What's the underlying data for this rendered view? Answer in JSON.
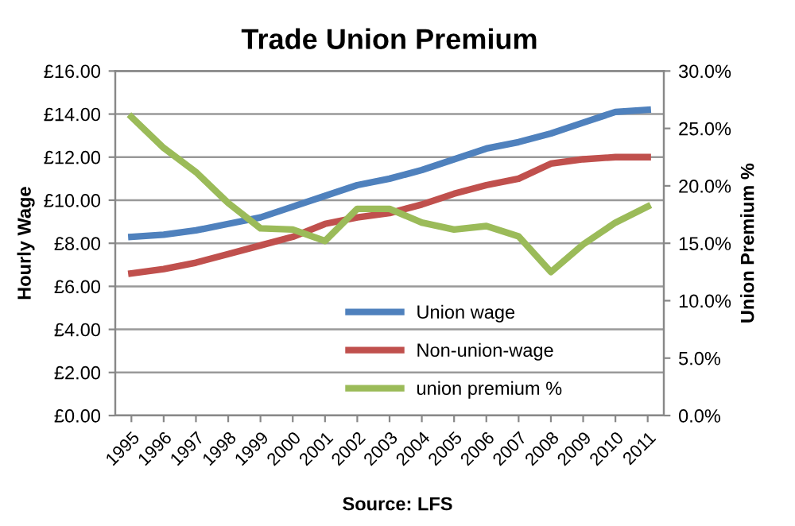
{
  "chart_data": {
    "type": "line",
    "title": "Trade Union Premium",
    "ylabel": "Hourly Wage",
    "y2label": "Union Premium %",
    "categories": [
      "1995",
      "1996",
      "1997",
      "1998",
      "1999",
      "2000",
      "2001",
      "2002",
      "2003",
      "2004",
      "2005",
      "2006",
      "2007",
      "2008",
      "2009",
      "2010",
      "2011"
    ],
    "series": [
      {
        "name": "Union wage",
        "color": "#4f81bd",
        "values": [
          8.3,
          8.4,
          8.6,
          8.9,
          9.2,
          9.7,
          10.2,
          10.7,
          11.0,
          11.4,
          11.9,
          12.4,
          12.7,
          13.1,
          13.6,
          14.1,
          14.2
        ]
      },
      {
        "name": "Non-union-wage",
        "color": "#c0504d",
        "values": [
          6.6,
          6.8,
          7.1,
          7.5,
          7.9,
          8.3,
          8.9,
          9.2,
          9.4,
          9.8,
          10.3,
          10.7,
          11.0,
          11.7,
          11.9,
          12.0,
          12.0
        ]
      },
      {
        "name": "union premium %",
        "color": "#9bbb59",
        "axis": "y2",
        "values": [
          26.0,
          23.3,
          21.2,
          18.5,
          16.3,
          16.2,
          15.2,
          18.0,
          18.0,
          16.8,
          16.2,
          16.5,
          15.6,
          12.5,
          14.9,
          16.8,
          18.2
        ]
      }
    ],
    "ylim": [
      0,
      16
    ],
    "yticks": [
      {
        "value": 0,
        "label": "£0.00"
      },
      {
        "value": 2,
        "label": "£2.00"
      },
      {
        "value": 4,
        "label": "£4.00"
      },
      {
        "value": 6,
        "label": "£6.00"
      },
      {
        "value": 8,
        "label": "£8.00"
      },
      {
        "value": 10,
        "label": "£10.00"
      },
      {
        "value": 12,
        "label": "£12.00"
      },
      {
        "value": 14,
        "label": "£14.00"
      },
      {
        "value": 16,
        "label": "£16.00"
      }
    ],
    "y2lim": [
      0,
      30
    ],
    "y2ticks": [
      {
        "value": 0,
        "label": "0.0%"
      },
      {
        "value": 5,
        "label": "5.0%"
      },
      {
        "value": 10,
        "label": "10.0%"
      },
      {
        "value": 15,
        "label": "15.0%"
      },
      {
        "value": 20,
        "label": "20.0%"
      },
      {
        "value": 25,
        "label": "25.0%"
      },
      {
        "value": 30,
        "label": "30.0%"
      }
    ],
    "grid": "y",
    "legend": "bottom",
    "marker": "none",
    "line_style": "solid",
    "annotations": [
      "Source: LFS"
    ]
  }
}
